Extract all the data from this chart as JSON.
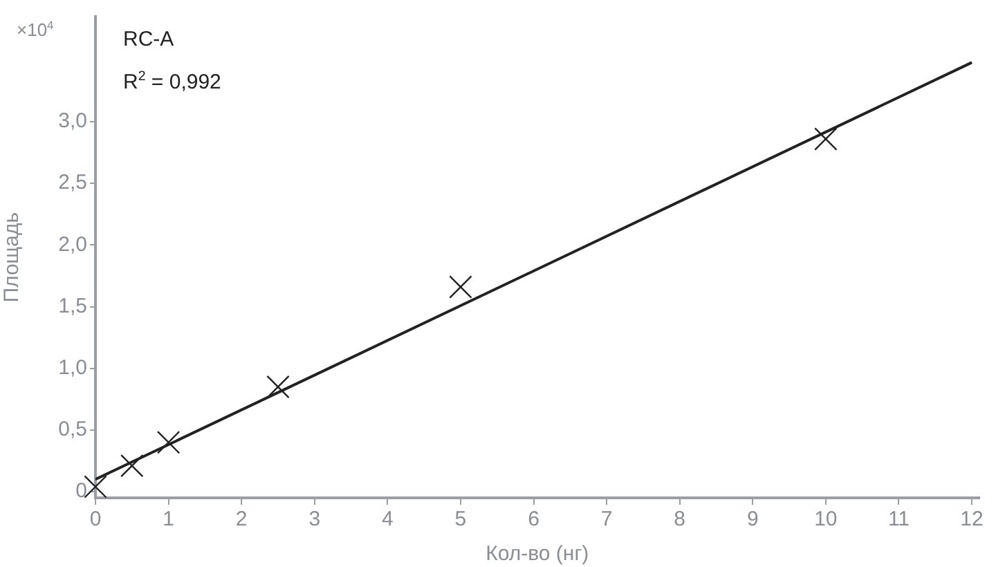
{
  "chart_data": {
    "type": "scatter",
    "title": "RC-A",
    "xlabel": "Кол-во (нг)",
    "ylabel": "Площадь",
    "annotations": [
      "R$^{2}$ = 0,992",
      "×10$^{4}$"
    ],
    "series": [
      {
        "type": "scatter",
        "color": "#222222",
        "x": [
          0,
          0.5,
          1,
          2.5,
          5,
          10
        ],
        "values": [
          0.04,
          0.21,
          0.4,
          0.85,
          1.66,
          2.86
        ],
        "marker": "cross"
      },
      {
        "type": "line",
        "color": "#222222",
        "x": [
          0,
          12
        ],
        "values": [
          0.1,
          3.48
        ],
        "marker": "none",
        "line_style": "solid"
      }
    ],
    "xlim": [
      0,
      12.1
    ],
    "ylim": [
      -0.05,
      3.85
    ],
    "xticks": [
      0,
      1,
      2,
      3,
      4,
      5,
      6,
      7,
      8,
      9,
      10,
      11,
      12
    ],
    "yticks": [
      0,
      {
        "value": 0.5,
        "label": "0,5"
      },
      {
        "value": 1,
        "label": "1,0"
      },
      {
        "value": 1.5,
        "label": "1,5"
      },
      {
        "value": 2,
        "label": "2,0"
      },
      {
        "value": 2.5,
        "label": "2,5"
      },
      {
        "value": 3,
        "label": "3,0"
      }
    ],
    "grid": false,
    "legend": false
  }
}
